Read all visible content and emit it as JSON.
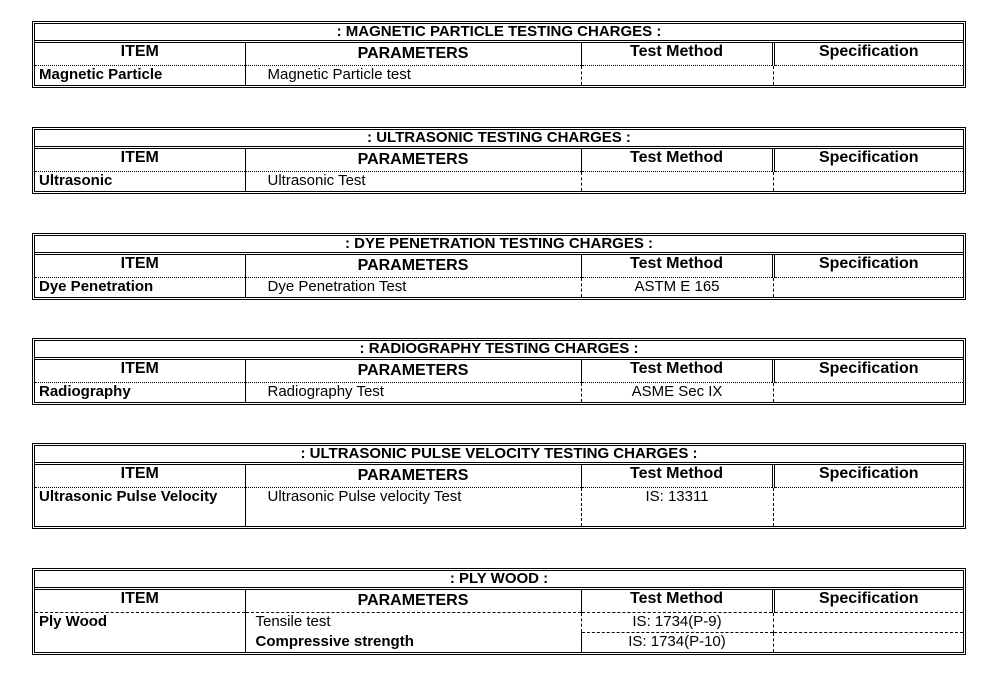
{
  "columns": {
    "item": "ITEM",
    "parameters": "PARAMETERS",
    "test_method": "Test Method",
    "specification": "Specification"
  },
  "tables": [
    {
      "title": ": MAGNETIC PARTICLE TESTING CHARGES :",
      "rows": [
        {
          "item": "Magnetic Particle",
          "parameter": "Magnetic Particle test",
          "method": "",
          "spec": ""
        }
      ]
    },
    {
      "title": ": ULTRASONIC TESTING CHARGES :",
      "rows": [
        {
          "item": "Ultrasonic",
          "parameter": "Ultrasonic Test",
          "method": "",
          "spec": ""
        }
      ]
    },
    {
      "title": ": DYE PENETRATION TESTING CHARGES :",
      "rows": [
        {
          "item": "Dye Penetration",
          "parameter": "Dye Penetration Test",
          "method": "ASTM E 165",
          "spec": ""
        }
      ]
    },
    {
      "title": ": RADIOGRAPHY TESTING CHARGES :",
      "rows": [
        {
          "item": "Radiography",
          "parameter": "Radiography Test",
          "method": "ASME Sec IX",
          "spec": ""
        }
      ]
    },
    {
      "title": ": ULTRASONIC PULSE VELOCITY TESTING CHARGES :",
      "rows": [
        {
          "item": "Ultrasonic Pulse Velocity",
          "parameter": "Ultrasonic Pulse velocity Test",
          "method": "IS: 13311",
          "spec": ""
        }
      ]
    },
    {
      "title": ": PLY WOOD :",
      "rows": [
        {
          "item": "Ply Wood",
          "parameter": "Tensile test",
          "method": "IS: 1734(P-9)",
          "spec": ""
        },
        {
          "item": "",
          "parameter": "Compressive strength",
          "method": "IS: 1734(P-10)",
          "spec": ""
        }
      ]
    }
  ]
}
